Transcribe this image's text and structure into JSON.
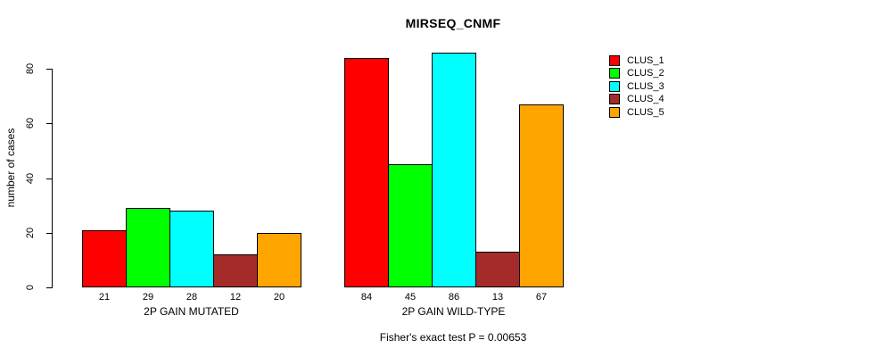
{
  "chart_data": {
    "type": "bar",
    "title": "MIRSEQ_CNMF",
    "ylabel": "number of cases",
    "xlabel": "",
    "categories": [
      "2P GAIN MUTATED",
      "2P GAIN WILD-TYPE"
    ],
    "series": [
      {
        "name": "CLUS_1",
        "color": "#FF0000",
        "values": [
          21,
          84
        ]
      },
      {
        "name": "CLUS_2",
        "color": "#00FF00",
        "values": [
          29,
          45
        ]
      },
      {
        "name": "CLUS_3",
        "color": "#00FFFF",
        "values": [
          28,
          86
        ]
      },
      {
        "name": "CLUS_4",
        "color": "#A52A2A",
        "values": [
          12,
          13
        ]
      },
      {
        "name": "CLUS_5",
        "color": "#FFA500",
        "values": [
          20,
          67
        ]
      }
    ],
    "yticks": [
      0,
      20,
      40,
      60,
      80
    ],
    "ylim": [
      0,
      88
    ],
    "grid": false,
    "legend_position": "right",
    "bar_value_labels": true,
    "footnote": "Fisher's exact test P = 0.00653"
  }
}
